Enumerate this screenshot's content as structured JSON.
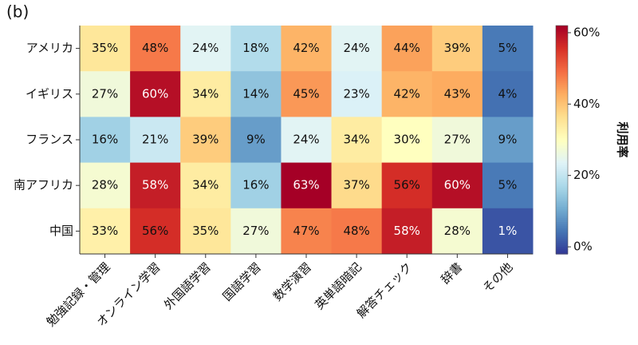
{
  "chart_data": {
    "type": "heatmap",
    "panel_label": "(b)",
    "rows": [
      "アメリカ",
      "イギリス",
      "フランス",
      "南アフリカ",
      "中国"
    ],
    "categories": [
      "勉強記録・管理",
      "オンライン学習",
      "外国語学習",
      "国語学習",
      "数学演習",
      "英単語暗記",
      "解答チェック",
      "辞書",
      "その他"
    ],
    "values": [
      [
        35,
        48,
        24,
        18,
        42,
        24,
        44,
        39,
        5
      ],
      [
        27,
        60,
        34,
        14,
        45,
        23,
        42,
        43,
        4
      ],
      [
        16,
        21,
        39,
        9,
        24,
        34,
        30,
        27,
        9
      ],
      [
        28,
        58,
        34,
        16,
        63,
        37,
        56,
        60,
        5
      ],
      [
        33,
        56,
        35,
        27,
        47,
        48,
        58,
        28,
        1
      ]
    ],
    "value_labels": [
      [
        "35%",
        "48%",
        "24%",
        "18%",
        "42%",
        "24%",
        "44%",
        "39%",
        "5%"
      ],
      [
        "27%",
        "60%",
        "34%",
        "14%",
        "45%",
        "23%",
        "42%",
        "43%",
        "4%"
      ],
      [
        "16%",
        "21%",
        "39%",
        "9%",
        "24%",
        "34%",
        "30%",
        "27%",
        "9%"
      ],
      [
        "28%",
        "58%",
        "34%",
        "16%",
        "63%",
        "37%",
        "56%",
        "60%",
        "5%"
      ],
      [
        "33%",
        "56%",
        "35%",
        "27%",
        "47%",
        "48%",
        "58%",
        "28%",
        "1%"
      ]
    ],
    "colorbar_label": "利用率",
    "clim": [
      -2,
      62
    ],
    "cticks": [
      {
        "value": 0,
        "label": "0%"
      },
      {
        "value": 20,
        "label": "20%"
      },
      {
        "value": 40,
        "label": "40%"
      },
      {
        "value": 60,
        "label": "60%"
      }
    ],
    "colormap": [
      "#313695",
      "#4575b4",
      "#74add1",
      "#abd9e9",
      "#e0f3f8",
      "#ffffbf",
      "#fee090",
      "#fdae61",
      "#f46d43",
      "#d73027",
      "#a50026"
    ]
  }
}
